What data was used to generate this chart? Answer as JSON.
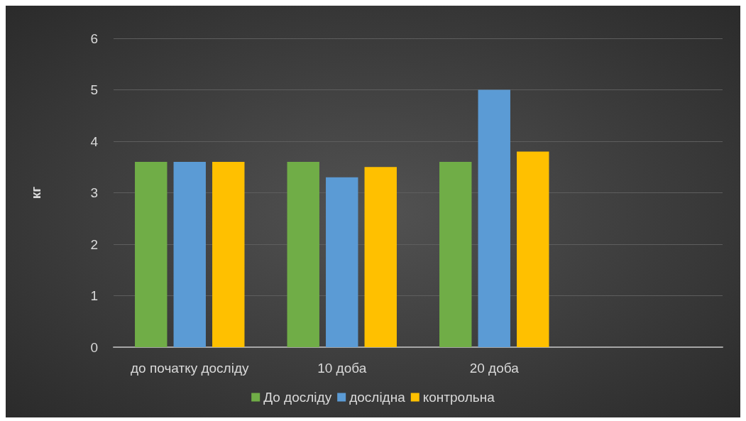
{
  "chart_data": {
    "type": "bar",
    "ylabel": "кг",
    "categories": [
      "до початку досліду",
      "10 доба",
      "20 доба",
      null
    ],
    "series": [
      {
        "name": "До досліду",
        "color": "#70ad47",
        "values": [
          3.6,
          3.6,
          3.6,
          null
        ]
      },
      {
        "name": "дослідна",
        "color": "#5b9bd5",
        "values": [
          3.6,
          3.3,
          5,
          null
        ]
      },
      {
        "name": "контрольна",
        "color": "#ffc000",
        "values": [
          3.6,
          3.5,
          3.8,
          null
        ]
      }
    ],
    "ylim": [
      0,
      6
    ],
    "yticks": [
      0,
      1,
      2,
      3,
      4,
      5,
      6
    ],
    "grid": "y",
    "legend": "bottom"
  }
}
